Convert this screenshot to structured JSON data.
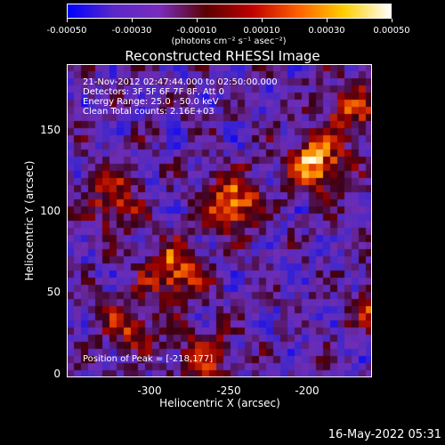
{
  "colorbar": {
    "ticks": [
      "-0.00050",
      "-0.00030",
      "-0.00010",
      "0.00010",
      "0.00030",
      "0.00050"
    ],
    "units": "(photons cm⁻² s⁻¹ asec⁻²)",
    "colors": [
      "#0000ff",
      "#5a28c8",
      "#7a2bbd",
      "#5a0000",
      "#c00000",
      "#ff6000",
      "#ffd000",
      "#ffffff"
    ]
  },
  "plot": {
    "title": "Reconstructed RHESSI Image",
    "info_lines": [
      "21-Nov-2012 02:47:44.000 to 02:50:00.000",
      "Detectors: 3F 5F 6F 7F 8F, Att 0",
      "Energy Range: 25.0 - 50.0 keV",
      "Clean     Total counts: 2.16E+03"
    ],
    "peak_label": "Position of Peak = [-218,177]",
    "xlabel": "Heliocentric X (arcsec)",
    "ylabel": "Heliocentric Y (arcsec)",
    "xticks": [
      "-300",
      "-250",
      "-200"
    ],
    "yticks": [
      "0",
      "50",
      "100",
      "150"
    ]
  },
  "chart_data": {
    "type": "heatmap",
    "title": "Reconstructed RHESSI Image",
    "xlabel": "Heliocentric X (arcsec)",
    "ylabel": "Heliocentric Y (arcsec)",
    "xlim": [
      -346,
      -243
    ],
    "ylim": [
      -3,
      188
    ],
    "colorbar_range": [
      -0.0005,
      0.0005
    ],
    "sources": [
      {
        "x": -218,
        "y": 177,
        "intensity": 1.0
      },
      {
        "x": -262,
        "y": 127,
        "intensity": 0.85
      },
      {
        "x": -222,
        "y": 115,
        "intensity": 0.75
      },
      {
        "x": -290,
        "y": 103,
        "intensity": 0.8
      },
      {
        "x": -310,
        "y": 62,
        "intensity": 0.7
      },
      {
        "x": -238,
        "y": 40,
        "intensity": 0.7
      },
      {
        "x": -195,
        "y": 15,
        "intensity": 0.75
      },
      {
        "x": -205,
        "y": 95,
        "intensity": 0.6
      },
      {
        "x": -330,
        "y": 105,
        "intensity": 0.55
      },
      {
        "x": -300,
        "y": 10,
        "intensity": 0.55
      },
      {
        "x": -250,
        "y": 160,
        "intensity": 0.5
      },
      {
        "x": -325,
        "y": 30,
        "intensity": 0.5
      }
    ]
  },
  "timestamp": "16-May-2022 05:31"
}
